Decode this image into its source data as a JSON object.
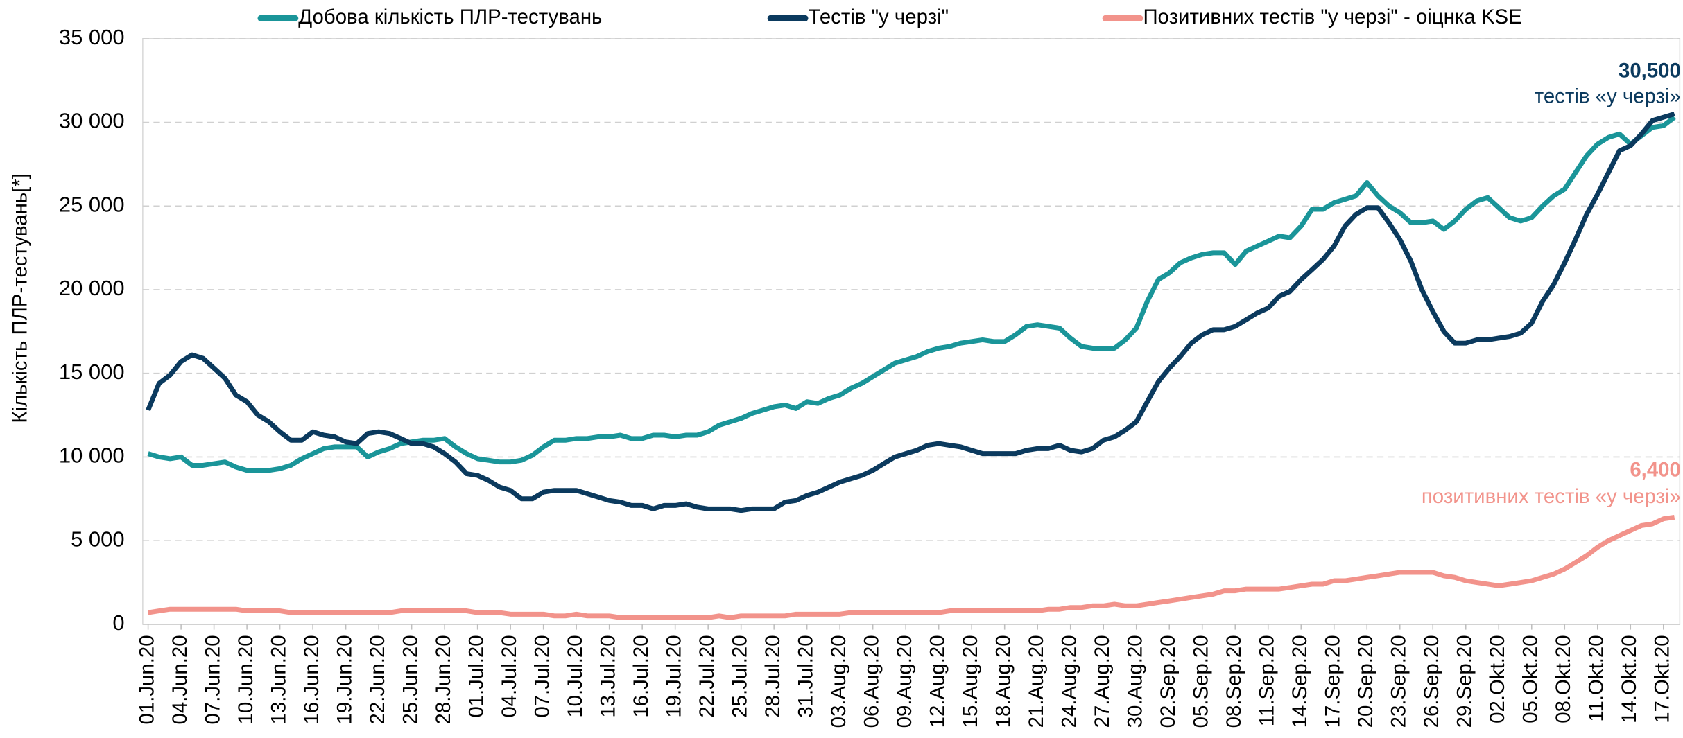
{
  "chart_data": {
    "type": "line",
    "y_label": "Кількість ПЛР-тестувань[*]",
    "ylim": [
      0,
      35000
    ],
    "yticks": [
      0,
      {
        "value": 5000,
        "label": "5 000"
      },
      {
        "value": 10000,
        "label": "10 000"
      },
      {
        "value": 15000,
        "label": "15 000"
      },
      {
        "value": 20000,
        "label": "20 000"
      },
      {
        "value": 25000,
        "label": "25 000"
      },
      {
        "value": 30000,
        "label": "30 000"
      },
      {
        "value": 35000,
        "label": "35 000"
      }
    ],
    "grid": true,
    "legend": "top",
    "categories": [
      "01.Jun.20",
      null,
      null,
      "04.Jun.20",
      null,
      null,
      "07.Jun.20",
      null,
      null,
      "10.Jun.20",
      null,
      null,
      "13.Jun.20",
      null,
      null,
      "16.Jun.20",
      null,
      null,
      "19.Jun.20",
      null,
      null,
      "22.Jun.20",
      null,
      null,
      "25.Jun.20",
      null,
      null,
      "28.Jun.20",
      null,
      null,
      "01.Jul.20",
      null,
      null,
      "04.Jul.20",
      null,
      null,
      "07.Jul.20",
      null,
      null,
      "10.Jul.20",
      null,
      null,
      "13.Jul.20",
      null,
      null,
      "16.Jul.20",
      null,
      null,
      "19.Jul.20",
      null,
      null,
      "22.Jul.20",
      null,
      null,
      "25.Jul.20",
      null,
      null,
      "28.Jul.20",
      null,
      null,
      "31.Jul.20",
      null,
      null,
      "03.Aug.20",
      null,
      null,
      "06.Aug.20",
      null,
      null,
      "09.Aug.20",
      null,
      null,
      "12.Aug.20",
      null,
      null,
      "15.Aug.20",
      null,
      null,
      "18.Aug.20",
      null,
      null,
      "21.Aug.20",
      null,
      null,
      "24.Aug.20",
      null,
      null,
      "27.Aug.20",
      null,
      null,
      "30.Aug.20",
      null,
      null,
      "02.Sep.20",
      null,
      null,
      "05.Sep.20",
      null,
      null,
      "08.Sep.20",
      null,
      null,
      "11.Sep.20",
      null,
      null,
      "14.Sep.20",
      null,
      null,
      "17.Sep.20",
      null,
      null,
      "20.Sep.20",
      null,
      null,
      "23.Sep.20",
      null,
      null,
      "26.Sep.20",
      null,
      null,
      "29.Sep.20",
      null,
      null,
      "02.Okt.20",
      null,
      null,
      "05.Okt.20",
      null,
      null,
      "08.Okt.20",
      null,
      null,
      "11.Okt.20",
      null,
      null,
      "14.Okt.20",
      null,
      null,
      "17.Okt.20",
      null
    ],
    "series": [
      {
        "name": "Добова кількість ПЛР-тестувань",
        "color": "#1a9599",
        "values": [
          10200,
          10000,
          9900,
          10000,
          9500,
          9500,
          9600,
          9700,
          9400,
          9200,
          9200,
          9200,
          9300,
          9500,
          9900,
          10200,
          10500,
          10600,
          10600,
          10600,
          10000,
          10300,
          10500,
          10800,
          10900,
          11000,
          11000,
          11100,
          10600,
          10200,
          9900,
          9800,
          9700,
          9700,
          9800,
          10100,
          10600,
          11000,
          11000,
          11100,
          11100,
          11200,
          11200,
          11300,
          11100,
          11100,
          11300,
          11300,
          11200,
          11300,
          11300,
          11500,
          11900,
          12100,
          12300,
          12600,
          12800,
          13000,
          13100,
          12900,
          13300,
          13200,
          13500,
          13700,
          14100,
          14400,
          14800,
          15200,
          15600,
          15800,
          16000,
          16300,
          16500,
          16600,
          16800,
          16900,
          17000,
          16900,
          16900,
          17300,
          17800,
          17900,
          17800,
          17700,
          17100,
          16600,
          16500,
          16500,
          16500,
          17000,
          17700,
          19300,
          20600,
          21000,
          21600,
          21900,
          22100,
          22200,
          22200,
          21500,
          22300,
          22600,
          22900,
          23200,
          23100,
          23800,
          24800,
          24800,
          25200,
          25400,
          25600,
          26400,
          25600,
          25000,
          24600,
          24000,
          24000,
          24100,
          23600,
          24100,
          24800,
          25300,
          25500,
          24900,
          24300,
          24100,
          24300,
          25000,
          25600,
          26000,
          27000,
          28000,
          28700,
          29100,
          29300,
          28700,
          29200,
          29700,
          29800,
          30300
        ]
      },
      {
        "name": "Тестів \"у черзі\"",
        "color": "#0b3a5e",
        "values": [
          12800,
          14400,
          14900,
          15700,
          16100,
          15900,
          15300,
          14700,
          13700,
          13300,
          12500,
          12100,
          11500,
          11000,
          11000,
          11500,
          11300,
          11200,
          10900,
          10800,
          11400,
          11500,
          11400,
          11100,
          10800,
          10800,
          10600,
          10200,
          9700,
          9000,
          8900,
          8600,
          8200,
          8000,
          7500,
          7500,
          7900,
          8000,
          8000,
          8000,
          7800,
          7600,
          7400,
          7300,
          7100,
          7100,
          6900,
          7100,
          7100,
          7200,
          7000,
          6900,
          6900,
          6900,
          6800,
          6900,
          6900,
          6900,
          7300,
          7400,
          7700,
          7900,
          8200,
          8500,
          8700,
          8900,
          9200,
          9600,
          10000,
          10200,
          10400,
          10700,
          10800,
          10700,
          10600,
          10400,
          10200,
          10200,
          10200,
          10200,
          10400,
          10500,
          10500,
          10700,
          10400,
          10300,
          10500,
          11000,
          11200,
          11600,
          12100,
          13300,
          14500,
          15300,
          16000,
          16800,
          17300,
          17600,
          17600,
          17800,
          18200,
          18600,
          18900,
          19600,
          19900,
          20600,
          21200,
          21800,
          22600,
          23800,
          24500,
          24900,
          24900,
          24000,
          23000,
          21700,
          20000,
          18700,
          17500,
          16800,
          16800,
          17000,
          17000,
          17100,
          17200,
          17400,
          18000,
          19300,
          20300,
          21600,
          23000,
          24500,
          25700,
          27000,
          28300,
          28600,
          29300,
          30100,
          30300,
          30500
        ]
      },
      {
        "name": "Позитивних  тестів \"у черзі\" - оіцнка KSE",
        "color": "#f2938b",
        "values": [
          700,
          800,
          900,
          900,
          900,
          900,
          900,
          900,
          900,
          800,
          800,
          800,
          800,
          700,
          700,
          700,
          700,
          700,
          700,
          700,
          700,
          700,
          700,
          800,
          800,
          800,
          800,
          800,
          800,
          800,
          700,
          700,
          700,
          600,
          600,
          600,
          600,
          500,
          500,
          600,
          500,
          500,
          500,
          400,
          400,
          400,
          400,
          400,
          400,
          400,
          400,
          400,
          500,
          400,
          500,
          500,
          500,
          500,
          500,
          600,
          600,
          600,
          600,
          600,
          700,
          700,
          700,
          700,
          700,
          700,
          700,
          700,
          700,
          800,
          800,
          800,
          800,
          800,
          800,
          800,
          800,
          800,
          900,
          900,
          1000,
          1000,
          1100,
          1100,
          1200,
          1100,
          1100,
          1200,
          1300,
          1400,
          1500,
          1600,
          1700,
          1800,
          2000,
          2000,
          2100,
          2100,
          2100,
          2100,
          2200,
          2300,
          2400,
          2400,
          2600,
          2600,
          2700,
          2800,
          2900,
          3000,
          3100,
          3100,
          3100,
          3100,
          2900,
          2800,
          2600,
          2500,
          2400,
          2300,
          2400,
          2500,
          2600,
          2800,
          3000,
          3300,
          3700,
          4100,
          4600,
          5000,
          5300,
          5600,
          5900,
          6000,
          6300,
          6400
        ]
      }
    ],
    "annotations": [
      {
        "value": "30,500",
        "text": "тестів «у черзі»",
        "color": "#0b3a5e"
      },
      {
        "value": "6,400",
        "text": "позитивних  тестів «у черзі»",
        "color": "#f2938b"
      }
    ]
  }
}
